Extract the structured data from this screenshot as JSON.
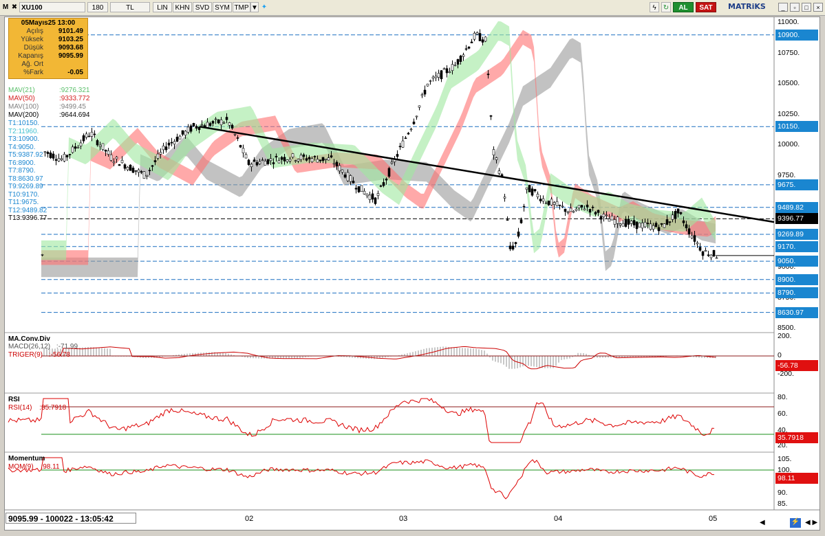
{
  "toolbar": {
    "logo": "M",
    "symbol": "XU100",
    "period": "180",
    "currency": "TL",
    "buttons": [
      "LIN",
      "KHN",
      "SVD",
      "SYM",
      "TMP"
    ],
    "buy": "AL",
    "sell": "SAT",
    "brand": "MATRiKS"
  },
  "info": {
    "date": "05Mayıs25 13:00",
    "rows": [
      {
        "k": "Açılış",
        "v": "9101.49"
      },
      {
        "k": "Yüksek",
        "v": "9103.25"
      },
      {
        "k": "Düşük",
        "v": "9093.68"
      },
      {
        "k": "Kapanış",
        "v": "9095.99"
      },
      {
        "k": "Ağ. Ort",
        "v": ""
      },
      {
        "k": "%Fark",
        "v": "-0.05"
      }
    ]
  },
  "legend": [
    {
      "name": "MAV(21)",
      "value": ":9276.321",
      "color": "#7fdc8f"
    },
    {
      "name": "MAV(50)",
      "value": ":9333.772",
      "color": "#d42020"
    },
    {
      "name": "MAV(100)",
      "value": ":9499.45",
      "color": "#808080"
    },
    {
      "name": "MAV(200)",
      "value": ":9644.694",
      "color": "#000000"
    }
  ],
  "levels": [
    {
      "name": "T1:10150.",
      "color": "#1a86d0"
    },
    {
      "name": "T2:11960.",
      "color": "#40c0d0"
    },
    {
      "name": "T3:10900.",
      "color": "#1a86d0"
    },
    {
      "name": "T4:9050.",
      "color": "#1a86d0"
    },
    {
      "name": "T5:9387.92",
      "color": "#1a86d0"
    },
    {
      "name": "T6:8900.",
      "color": "#1a86d0"
    },
    {
      "name": "T7:8790.",
      "color": "#1a86d0"
    },
    {
      "name": "T8:8630.97",
      "color": "#1a86d0"
    },
    {
      "name": "T9:9269.89",
      "color": "#1a86d0"
    },
    {
      "name": "T10:9170.",
      "color": "#1a86d0"
    },
    {
      "name": "T11:9675.",
      "color": "#1a86d0"
    },
    {
      "name": "T12:9489.82",
      "color": "#1a86d0"
    },
    {
      "name": "T13:9396.77",
      "color": "#000000"
    }
  ],
  "price_axis": [
    "11000.",
    "10750.",
    "10500.",
    "10250.",
    "10000.",
    "9750.",
    "9500.",
    "9250.",
    "9000.",
    "8750.",
    "8500."
  ],
  "price_labels": [
    {
      "text": "10900.",
      "price": 10900
    },
    {
      "text": "10150.",
      "price": 10150
    },
    {
      "text": "9675.",
      "price": 9675
    },
    {
      "text": "9489.82",
      "price": 9489.82
    },
    {
      "text": "9396.77",
      "price": 9396.77,
      "black": true
    },
    {
      "text": "9269.89",
      "price": 9269.89
    },
    {
      "text": "9170.",
      "price": 9170
    },
    {
      "text": "9050.",
      "price": 9050
    },
    {
      "text": "8900.",
      "price": 8900
    },
    {
      "text": "8790.",
      "price": 8790
    },
    {
      "text": "8630.97",
      "price": 8630.97
    }
  ],
  "macd": {
    "title": "MA.Conv.Div",
    "line1": "MACD(26,12)",
    "v1": ":-71.99",
    "line2": "TRIGER(9)",
    "v2": ":-56.78",
    "axis": [
      "200.",
      "0",
      "-200."
    ],
    "badge": "-56.78"
  },
  "rsi": {
    "title": "RSI",
    "line": "RSI(14)",
    "value": ":35.7918",
    "axis": [
      "80.",
      "60.",
      "40.",
      "20."
    ],
    "badge": "35.7918"
  },
  "momentum": {
    "title": "Momentum",
    "line": "MOM(9)",
    "value": ":98.11",
    "axis": [
      "105.",
      "100.",
      "95.",
      "90.",
      "85."
    ],
    "badge": "98.11"
  },
  "dates": [
    "02",
    "03",
    "04",
    "05"
  ],
  "status": "9095.99 - 100022 - 13:05:42"
}
